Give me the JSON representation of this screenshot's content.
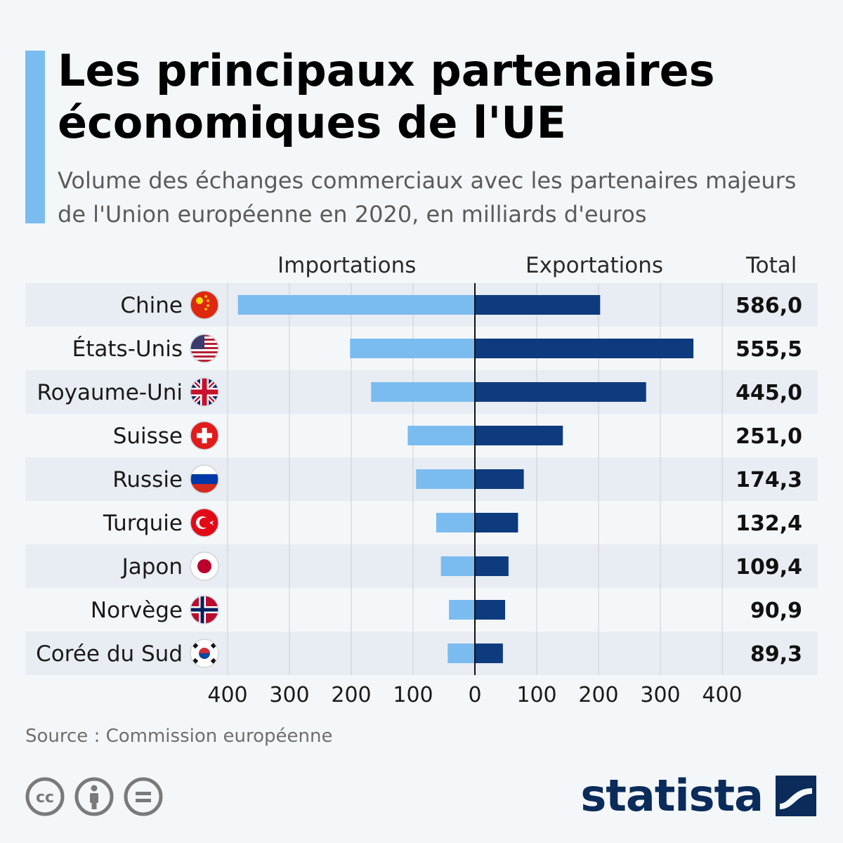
{
  "header": {
    "title": "Les principaux partenaires économiques de l'UE",
    "subtitle": "Volume des échanges commerciaux avec les partenaires majeurs de l'Union européenne en 2020, en milliards d'euros"
  },
  "columns": {
    "imports": "Importations",
    "exports": "Exportations",
    "total": "Total"
  },
  "footer": {
    "source": "Source : Commission européenne",
    "brand": "statista",
    "license_icons": [
      "cc-icon",
      "attribution-icon",
      "no-derivatives-icon"
    ]
  },
  "colors": {
    "imports": "#7bbcf0",
    "exports": "#0d3b7d",
    "row_band": "#e8edf3",
    "accent": "#7bbcf0",
    "brand": "#0b2c5a"
  },
  "chart_data": {
    "type": "bar",
    "orientation": "horizontal-diverging",
    "categories": [
      "Chine",
      "États-Unis",
      "Royaume-Uni",
      "Suisse",
      "Russie",
      "Turquie",
      "Japon",
      "Norvège",
      "Corée du Sud"
    ],
    "flags": [
      "flag-china-icon",
      "flag-usa-icon",
      "flag-uk-icon",
      "flag-switzerland-icon",
      "flag-russia-icon",
      "flag-turkey-icon",
      "flag-japan-icon",
      "flag-norway-icon",
      "flag-south-korea-icon"
    ],
    "series": [
      {
        "name": "Importations",
        "values": [
          383.4,
          202.0,
          168.0,
          108.7,
          95.2,
          62.6,
          55.0,
          42.0,
          44.0
        ]
      },
      {
        "name": "Exportations",
        "values": [
          202.6,
          353.5,
          277.0,
          142.3,
          79.1,
          69.8,
          54.4,
          48.9,
          45.3
        ]
      }
    ],
    "totals": [
      "586,0",
      "555,5",
      "445,0",
      "251,0",
      "174,3",
      "132,4",
      "109,4",
      "90,9",
      "89,3"
    ],
    "ticks": [
      "400",
      "300",
      "200",
      "100",
      "0",
      "100",
      "200",
      "300",
      "400"
    ],
    "xlim": [
      -400,
      400
    ],
    "grid": true
  }
}
